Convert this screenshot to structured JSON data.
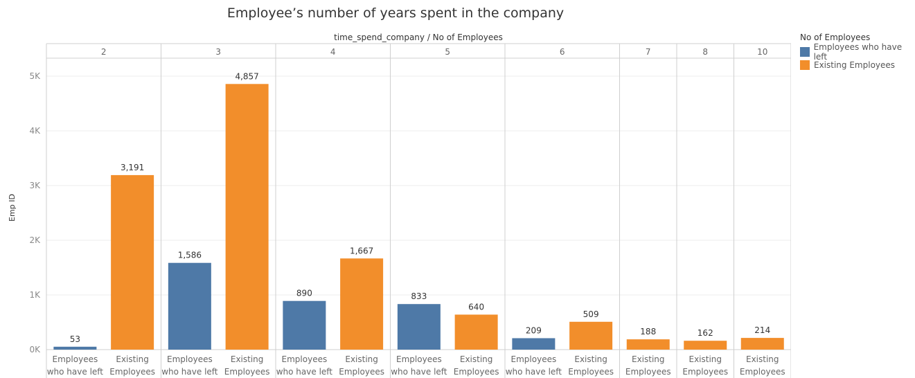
{
  "chart_data": {
    "type": "bar",
    "title": "Employee’s number of years spent in the company",
    "column_header_title": "time_spend_company  /  No of Employees",
    "ylabel": "Emp ID",
    "ylim": [
      0,
      5500
    ],
    "y_ticks": [
      {
        "value": 0,
        "label": "0K"
      },
      {
        "value": 1000,
        "label": "1K"
      },
      {
        "value": 2000,
        "label": "2K"
      },
      {
        "value": 3000,
        "label": "3K"
      },
      {
        "value": 4000,
        "label": "4K"
      },
      {
        "value": 5000,
        "label": "5K"
      }
    ],
    "grid": true,
    "legend": {
      "title": "No of Employees",
      "placement": "top-right",
      "entries": [
        {
          "name": "Employees who have left",
          "color": "#4e79a7"
        },
        {
          "name": "Existing Employees",
          "color": "#f28e2b"
        }
      ]
    },
    "category_labels": {
      "Employees who have left": [
        "Employees",
        "who have left"
      ],
      "Existing Employees": [
        "Existing",
        "Employees"
      ]
    },
    "groups": [
      {
        "time_spend_company": "2",
        "bars": [
          {
            "category": "Employees who have left",
            "value": 53,
            "label": "53"
          },
          {
            "category": "Existing Employees",
            "value": 3191,
            "label": "3,191"
          }
        ]
      },
      {
        "time_spend_company": "3",
        "bars": [
          {
            "category": "Employees who have left",
            "value": 1586,
            "label": "1,586"
          },
          {
            "category": "Existing Employees",
            "value": 4857,
            "label": "4,857"
          }
        ]
      },
      {
        "time_spend_company": "4",
        "bars": [
          {
            "category": "Employees who have left",
            "value": 890,
            "label": "890"
          },
          {
            "category": "Existing Employees",
            "value": 1667,
            "label": "1,667"
          }
        ]
      },
      {
        "time_spend_company": "5",
        "bars": [
          {
            "category": "Employees who have left",
            "value": 833,
            "label": "833"
          },
          {
            "category": "Existing Employees",
            "value": 640,
            "label": "640"
          }
        ]
      },
      {
        "time_spend_company": "6",
        "bars": [
          {
            "category": "Employees who have left",
            "value": 209,
            "label": "209"
          },
          {
            "category": "Existing Employees",
            "value": 509,
            "label": "509"
          }
        ]
      },
      {
        "time_spend_company": "7",
        "bars": [
          {
            "category": "Existing Employees",
            "value": 188,
            "label": "188"
          }
        ]
      },
      {
        "time_spend_company": "8",
        "bars": [
          {
            "category": "Existing Employees",
            "value": 162,
            "label": "162"
          }
        ]
      },
      {
        "time_spend_company": "10",
        "bars": [
          {
            "category": "Existing Employees",
            "value": 214,
            "label": "214"
          }
        ]
      }
    ]
  }
}
